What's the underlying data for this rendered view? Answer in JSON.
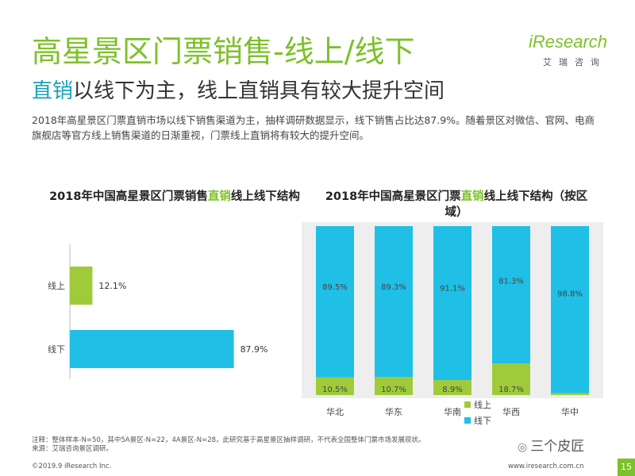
{
  "header": {
    "title": "高星景区门票销售-线上/线下",
    "subtitle_highlight": "直销",
    "subtitle_rest": "以线下为主，线上直销具有较大提升空间",
    "description": "2018年高星景区门票直销市场以线下销售渠道为主，抽样调研数据显示，线下销售占比达87.9%。随着景区对微信、官网、电商旗舰店等官方线上销售渠道的日渐重视，门票线上直销将有较大的提升空间。"
  },
  "logo": {
    "word": "iResearch",
    "cn": "艾瑞咨询"
  },
  "left_chart_title": {
    "part1": "2018年中国高星景区门票销售",
    "highlight": "直销",
    "part2": "线上线下结构"
  },
  "right_chart_title": {
    "part1": "2018年中国高星景区门票",
    "highlight": "直销",
    "part2": "线上线下结构（按区域）"
  },
  "chart_data": [
    {
      "type": "bar",
      "orientation": "horizontal",
      "categories": [
        "线上",
        "线下"
      ],
      "values": [
        12.1,
        87.9
      ],
      "value_labels": [
        "12.1%",
        "87.9%"
      ],
      "colors": [
        "#9fcb3a",
        "#1fbfe6"
      ],
      "xlim": [
        0,
        100
      ]
    },
    {
      "type": "bar",
      "stacked": true,
      "normalized": true,
      "categories": [
        "华北",
        "华东",
        "华南",
        "华西",
        "华中"
      ],
      "series": [
        {
          "name": "线上",
          "values": [
            10.5,
            10.7,
            8.9,
            18.7,
            1.2
          ],
          "labels": [
            "10.5%",
            "10.7%",
            "8.9%",
            "18.7%",
            "1.2%"
          ],
          "color": "#9fcb3a"
        },
        {
          "name": "线下",
          "values": [
            89.5,
            89.3,
            91.1,
            81.3,
            98.8
          ],
          "labels": [
            "89.5%",
            "89.3%",
            "91.1%",
            "81.3%",
            "98.8%"
          ],
          "color": "#1fbfe6"
        }
      ],
      "ylim": [
        0,
        100
      ],
      "legend": "bottom-right"
    }
  ],
  "footer": {
    "note1": "注释：整体样本-N=50，其中5A景区-N=22，4A景区-N=28，此研究基于高星景区抽样调研，不代表全国整体门票市场发展现状。",
    "note2": "来源：艾瑞咨询景区调研。",
    "copyright": "©2019.9 iResearch Inc.",
    "site": "www.iresearch.com.cn",
    "page": "15",
    "wechat": "三个皮匠"
  }
}
